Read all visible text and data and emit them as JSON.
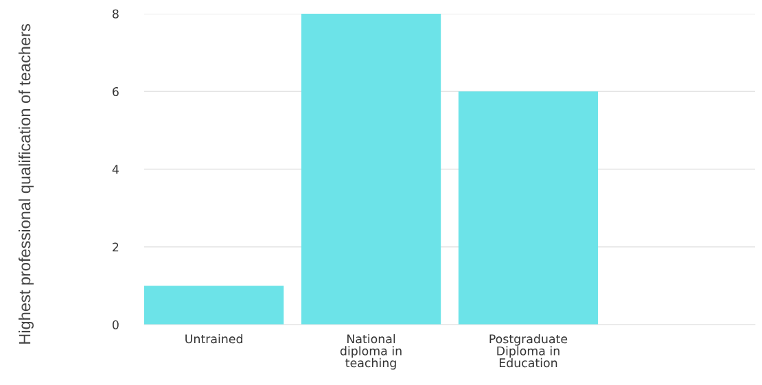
{
  "chart_data": {
    "type": "bar",
    "ylabel": "Highest professional qualification of teachers",
    "categories": [
      "Untrained",
      "National\ndiploma in\nteaching",
      "Postgraduate\nDiploma in\nEducation",
      null
    ],
    "values": [
      1,
      8,
      6,
      null
    ],
    "color": "#6ce3e8",
    "ylim": [
      0,
      8
    ],
    "yticks": [
      0,
      2,
      4,
      6,
      8
    ],
    "grid": "y"
  }
}
